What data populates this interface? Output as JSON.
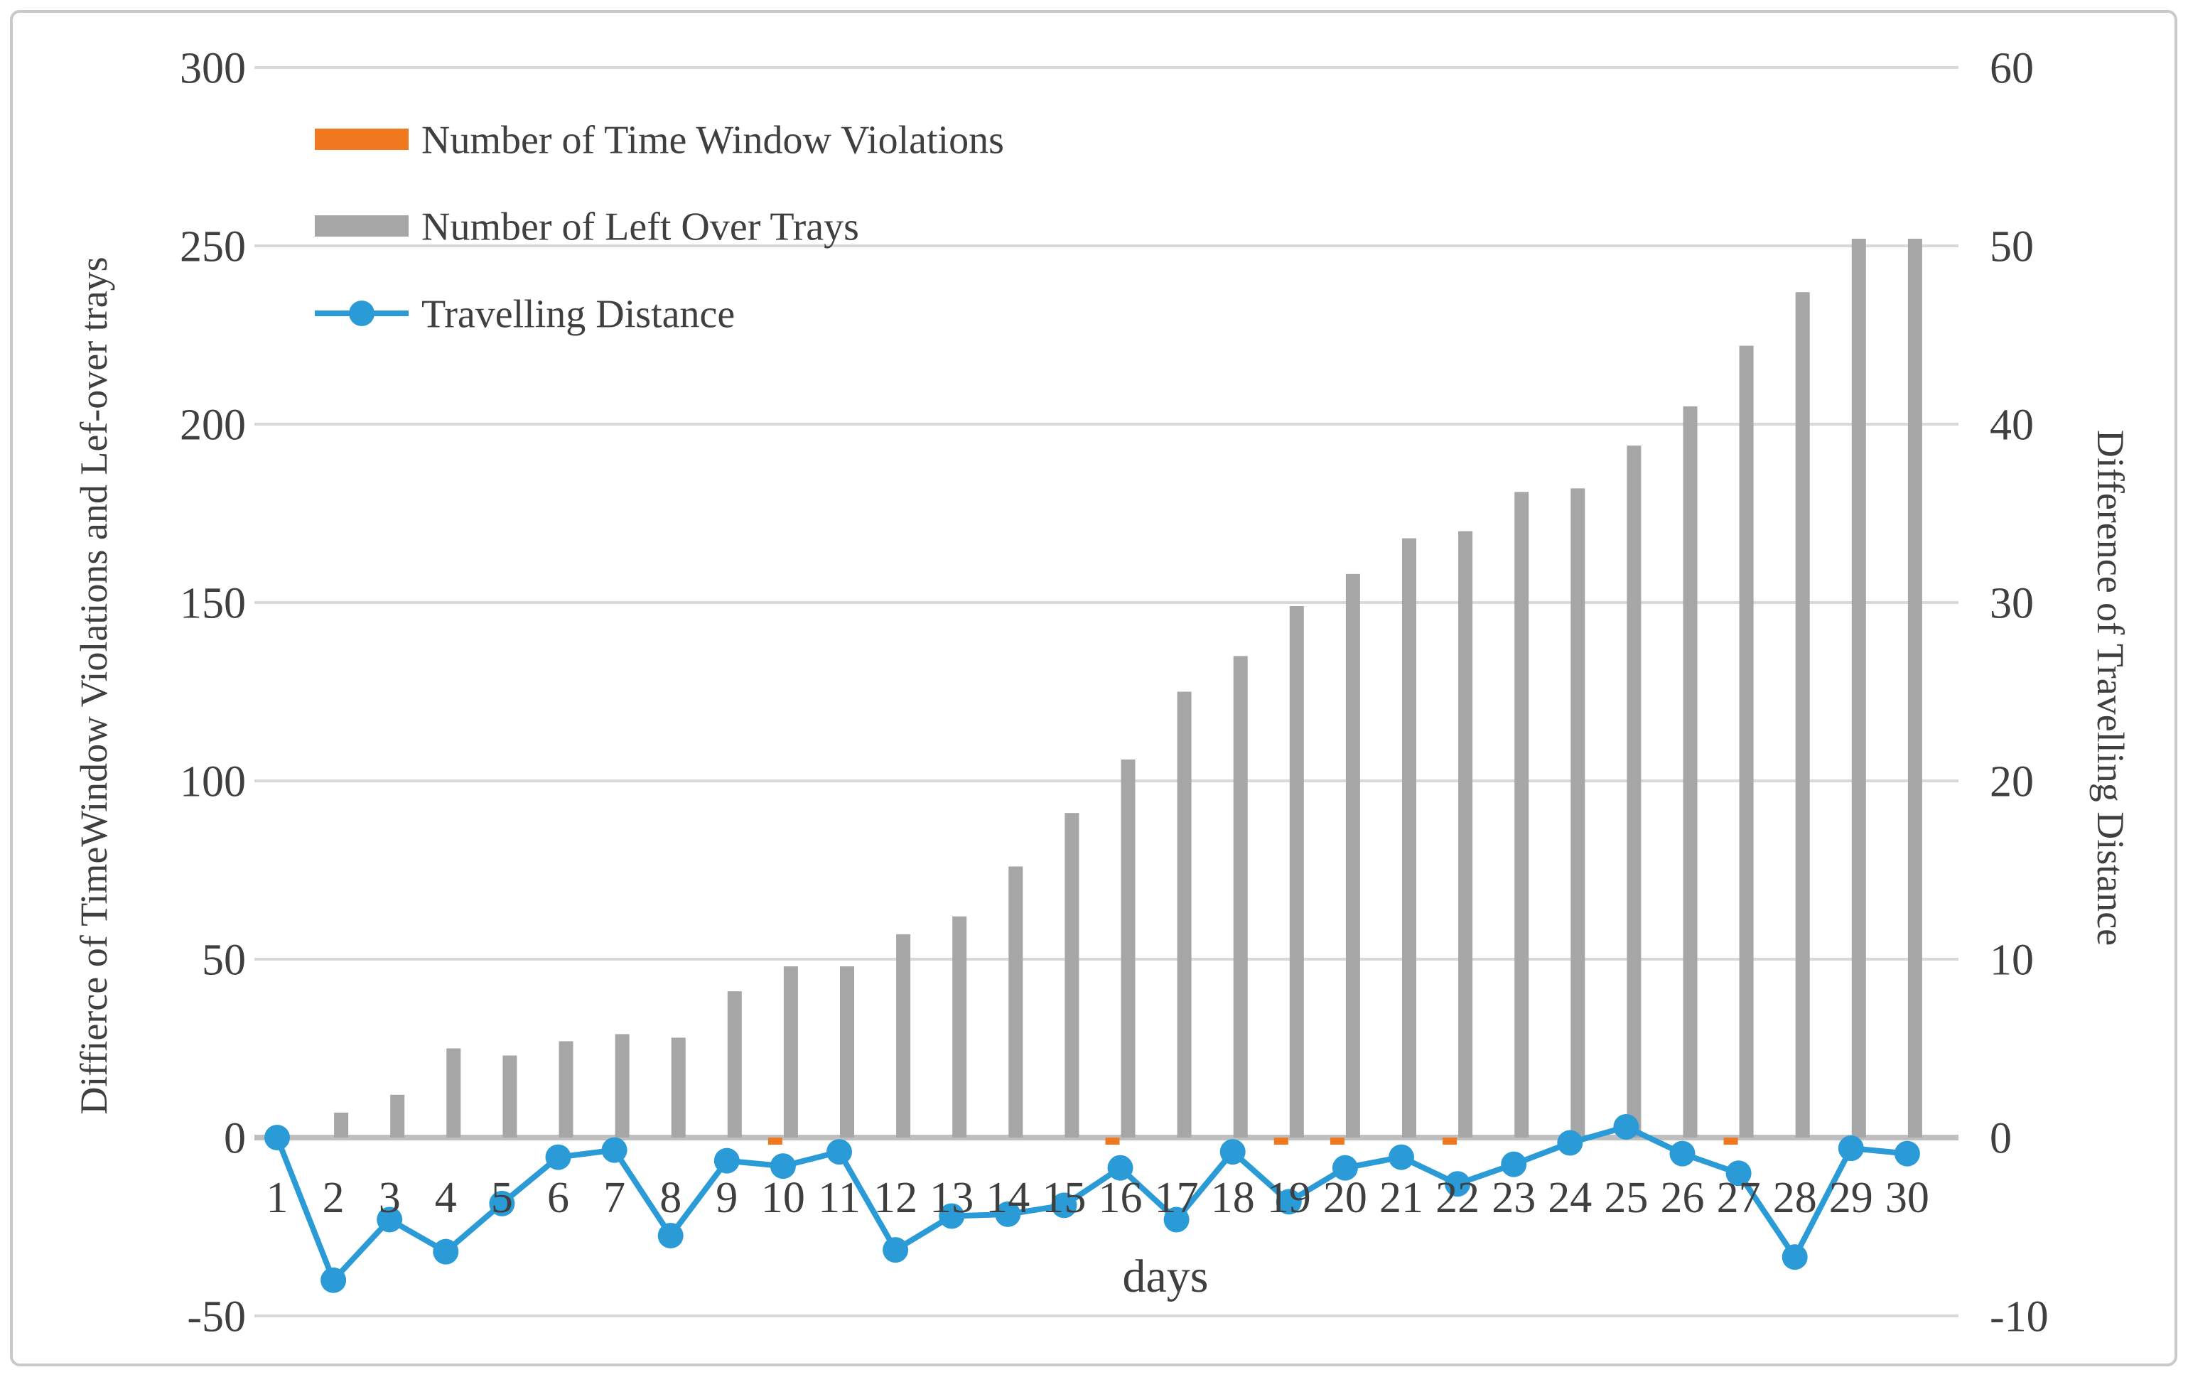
{
  "figure": {
    "background": "#ffffff",
    "border_color": "#c9c9c9"
  },
  "chart_data": {
    "type": "bar",
    "subtype": "combo-bar-line-dual-axis",
    "title": "",
    "xlabel": "days",
    "categories": [
      1,
      2,
      3,
      4,
      5,
      6,
      7,
      8,
      9,
      10,
      11,
      12,
      13,
      14,
      15,
      16,
      17,
      18,
      19,
      20,
      21,
      22,
      23,
      24,
      25,
      26,
      27,
      28,
      29,
      30
    ],
    "left_axis": {
      "title": "Diffierce of TimeWindow Violations and Lef-over trays",
      "ticks": [
        300,
        250,
        200,
        150,
        100,
        50,
        0,
        -50
      ],
      "range": [
        -50,
        300
      ]
    },
    "right_axis": {
      "title": "Difference of Travelling Distance",
      "ticks": [
        60,
        50,
        40,
        30,
        20,
        10,
        0,
        -10
      ],
      "range": [
        -10,
        60
      ]
    },
    "grid": "horizontal-on",
    "legend_position": "top-left-inside",
    "series": [
      {
        "name": "Number of Time Window Violations",
        "type": "bar",
        "axis": "left",
        "color": "#f0791f",
        "values": [
          0,
          0,
          0,
          0,
          0,
          0,
          0,
          0,
          0,
          -2,
          0,
          0,
          0,
          0,
          0,
          -2,
          0,
          0,
          -2,
          -2,
          0,
          -2,
          0,
          0,
          0,
          0,
          -2,
          0,
          0,
          0
        ]
      },
      {
        "name": "Number of Left Over Trays",
        "type": "bar",
        "axis": "left",
        "color": "#a6a6a6",
        "values": [
          0,
          7,
          12,
          25,
          23,
          27,
          29,
          28,
          41,
          48,
          48,
          57,
          62,
          76,
          91,
          106,
          125,
          135,
          149,
          158,
          168,
          170,
          181,
          182,
          194,
          205,
          222,
          237,
          252,
          252
        ]
      },
      {
        "name": "Travelling Distance",
        "type": "line",
        "axis": "right",
        "color": "#2b9bd7",
        "values": [
          0,
          -8,
          -4.6,
          -6.4,
          -3.7,
          -1.1,
          -0.7,
          -5.5,
          -1.3,
          -1.6,
          -0.8,
          -6.3,
          -4.4,
          -4.3,
          -3.8,
          -1.7,
          -4.6,
          -0.8,
          -3.6,
          -1.7,
          -1.1,
          -2.6,
          -1.5,
          -0.3,
          0.6,
          -0.9,
          -2.0,
          -6.7,
          -0.6,
          -0.9
        ]
      }
    ]
  }
}
